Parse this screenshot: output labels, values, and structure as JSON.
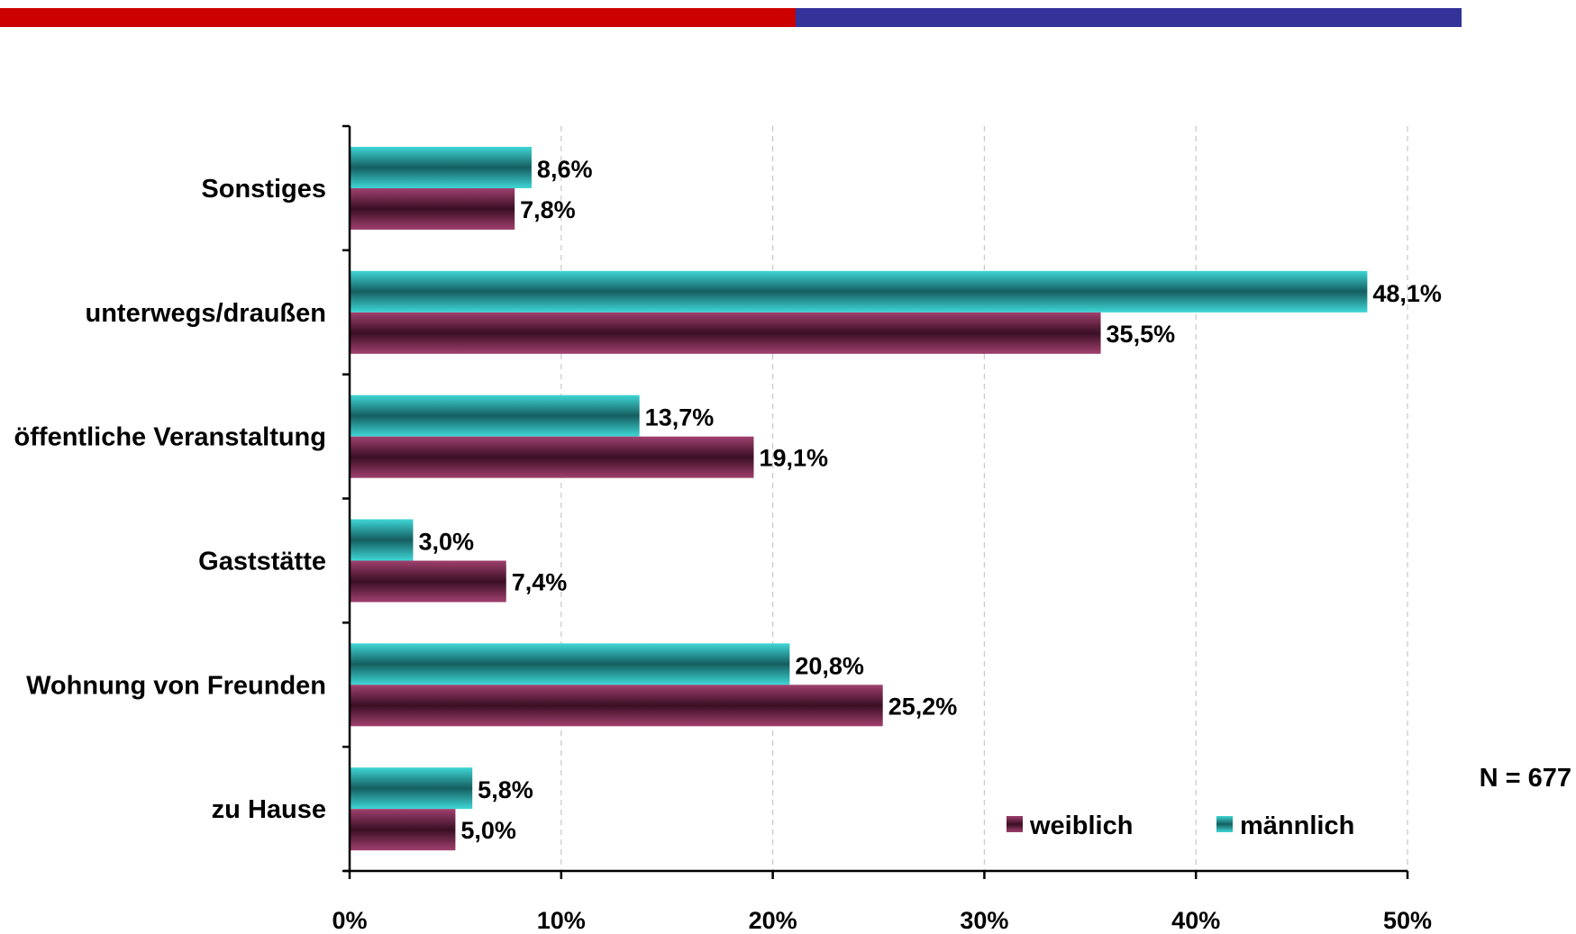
{
  "header_bar": {
    "left_color": "#cc0000",
    "right_color": "#333399"
  },
  "chart_data": {
    "type": "bar",
    "orientation": "horizontal",
    "categories": [
      "Sonstiges",
      "unterwegs/draußen",
      "öffentliche Veranstaltung",
      "Gaststätte",
      "Wohnung von Freunden",
      "zu Hause"
    ],
    "series": [
      {
        "name": "männlich",
        "color": "#33cccc",
        "values": [
          8.6,
          48.1,
          13.7,
          3.0,
          20.8,
          5.8
        ],
        "labels": [
          "8,6%",
          "48,1%",
          "13,7%",
          "3,0%",
          "20,8%",
          "5,8%"
        ]
      },
      {
        "name": "weiblich",
        "color": "#993366",
        "values": [
          7.8,
          35.5,
          19.1,
          7.4,
          25.2,
          5.0
        ],
        "labels": [
          "7,8%",
          "35,5%",
          "19,1%",
          "7,4%",
          "25,2%",
          "5,0%"
        ]
      }
    ],
    "xlim": [
      0,
      50
    ],
    "xticks": [
      0,
      10,
      20,
      30,
      40,
      50
    ],
    "xtick_labels": [
      "0%",
      "10%",
      "20%",
      "30%",
      "40%",
      "50%"
    ],
    "grid": "vertical dashed",
    "legend_order": [
      "weiblich",
      "männlich"
    ],
    "legend_position": "bottom-right",
    "annotation": "N = 677"
  }
}
